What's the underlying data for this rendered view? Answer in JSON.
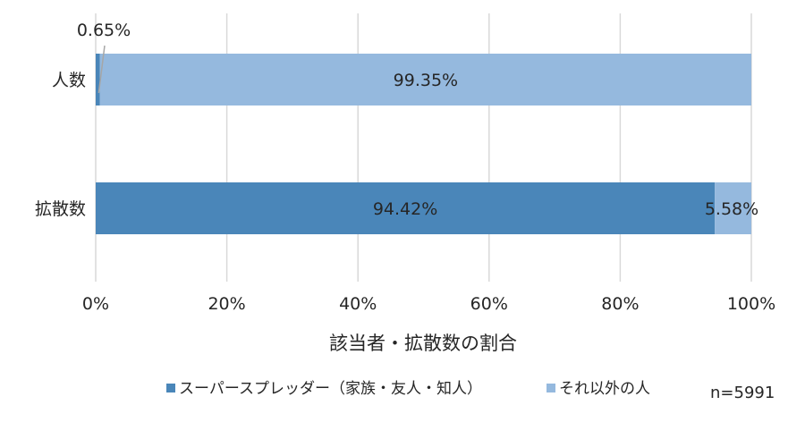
{
  "chart_data": {
    "type": "bar",
    "orientation": "horizontal",
    "stacked": true,
    "categories": [
      "人数",
      "拡散数"
    ],
    "series": [
      {
        "name": "スーパースプレッダー（家族・友人・知人）",
        "color": "#4a86b9",
        "values": [
          0.65,
          94.42
        ],
        "labels": [
          "0.65%",
          "94.42%"
        ]
      },
      {
        "name": "それ以外の人",
        "color": "#95b9de",
        "values": [
          99.35,
          5.58
        ],
        "labels": [
          "99.35%",
          "5.58%"
        ]
      }
    ],
    "xlim": [
      0,
      100
    ],
    "x_ticks": [
      0,
      20,
      40,
      60,
      80,
      100
    ],
    "x_tick_labels": [
      "0%",
      "20%",
      "40%",
      "60%",
      "80%",
      "100%"
    ],
    "xlabel": "該当者・拡散数の割合",
    "grid": true,
    "legend_position": "bottom",
    "note": "n=5991"
  }
}
